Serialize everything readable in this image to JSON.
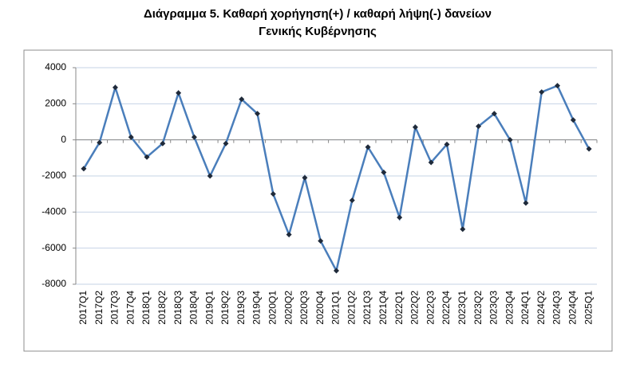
{
  "chart_data": {
    "type": "line",
    "title": [
      "Διάγραμμα 5. Καθαρή χορήγηση(+) / καθαρή λήψη(-) δανείων",
      "Γενικής Κυβέρνησης"
    ],
    "categories": [
      "2017Q1",
      "2017Q2",
      "2017Q3",
      "2017Q4",
      "2018Q1",
      "2018Q2",
      "2018Q3",
      "2018Q4",
      "2019Q1",
      "2019Q2",
      "2019Q3",
      "2019Q4",
      "2020Q1",
      "2020Q2",
      "2020Q3",
      "2020Q4",
      "2021Q1",
      "2021Q2",
      "2021Q3",
      "2021Q4",
      "2022Q1",
      "2022Q2",
      "2022Q3",
      "2022Q4",
      "2023Q1",
      "2023Q2",
      "2023Q3",
      "2023Q4",
      "2024Q1",
      "2024Q2",
      "2024Q3",
      "2024Q4",
      "2025Q1"
    ],
    "values": [
      -1600,
      -150,
      2900,
      150,
      -950,
      -200,
      2600,
      150,
      -2000,
      -200,
      2250,
      1450,
      -3000,
      -5250,
      -2100,
      -5600,
      -7250,
      -3350,
      -400,
      -1800,
      -4300,
      700,
      -1250,
      -250,
      -4950,
      750,
      1450,
      0,
      -3500,
      2650,
      3000,
      1100,
      -500
    ],
    "color": "#4a7ebb",
    "marker_color": "#1f2a3a",
    "ylim": [
      -8000,
      4000
    ],
    "yticks": [
      -8000,
      -6000,
      -4000,
      -2000,
      0,
      2000,
      4000
    ],
    "grid": true
  }
}
